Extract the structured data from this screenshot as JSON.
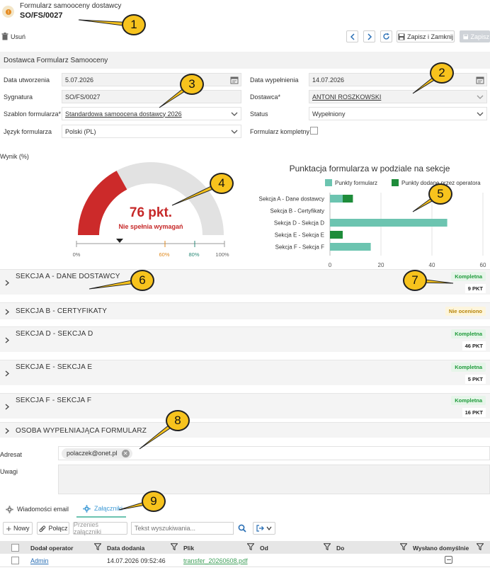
{
  "header": {
    "app_title": "Formularz samooceny dostawcy",
    "doc_number": "SO/FS/0027"
  },
  "toolbar": {
    "delete_label": "Usuń",
    "save_close_label": "Zapisz i Zamknij",
    "save_label": "Zapisz"
  },
  "form": {
    "section_title": "Dostawca Formularz Samooceny",
    "created_date_label": "Data utworzenia",
    "created_date_value": "5.07.2026",
    "signature_label": "Sygnatura",
    "signature_value": "SO/FS/0027",
    "template_label": "Szablon formularza*",
    "template_value": "Standardowa samoocena dostawcy 2026",
    "language_label": "Język formularza",
    "language_value": "Polski (PL)",
    "fill_date_label": "Data wypełnienia",
    "fill_date_value": "14.07.2026",
    "supplier_label": "Dostawca*",
    "supplier_value": "ANTONI ROSZKOWSKI",
    "status_label": "Status",
    "status_value": "Wypełniony",
    "complete_label": "Formularz kompletny"
  },
  "gauge": {
    "title": "Wynik (%)",
    "value": 76,
    "score_text": "76 pkt.",
    "status_text": "Nie spełnia wymagań",
    "ticks": [
      "0%",
      "60%",
      "80%",
      "100%"
    ],
    "colors": {
      "fail": "#cc2a2a",
      "track": "#e2e2e2",
      "tick60": "#e08a1e",
      "tick80": "#2b8a78"
    }
  },
  "chart_data": {
    "type": "bar",
    "orientation": "horizontal",
    "stacked": true,
    "title": "Punktacja formularza w podziale na sekcje",
    "categories": [
      "Sekcja A - Dane dostawcy",
      "Sekcja B - Certyfikaty",
      "Sekcja D - Sekcja D",
      "Sekcja E - Sekcja E",
      "Sekcja F - Sekcja F"
    ],
    "series": [
      {
        "name": "Punkty formularz",
        "color": "#6cc4b0",
        "values": [
          5,
          0,
          46,
          0,
          16
        ]
      },
      {
        "name": "Punkty dodane przez operatora",
        "color": "#1e8c3a",
        "values": [
          4,
          0,
          0,
          5,
          0
        ]
      }
    ],
    "xlim": [
      0,
      60
    ],
    "xticks": [
      "0",
      "20",
      "40",
      "60"
    ],
    "grid": true,
    "legend": "top"
  },
  "sections": [
    {
      "title": "SEKCJA A - DANE DOSTAWCY",
      "status": "Kompletna",
      "points": "9 PKT"
    },
    {
      "title": "SEKCJA B - CERTYFIKATY",
      "status": "Nie oceniono",
      "points": ""
    },
    {
      "title": "SEKCJA D - SEKCJA D",
      "status": "Kompletna",
      "points": "46 PKT"
    },
    {
      "title": "SEKCJA E - SEKCJA E",
      "status": "Kompletna",
      "points": "5 PKT"
    },
    {
      "title": "SEKCJA F - SEKCJA F",
      "status": "Kompletna",
      "points": "16 PKT"
    },
    {
      "title": "OSOBA WYPEŁNIAJĄCA FORMULARZ",
      "status": "",
      "points": ""
    }
  ],
  "person": {
    "addressee_label": "Adresat",
    "addressee_value": "polaczek@onet.pl",
    "notes_label": "Uwagi"
  },
  "tabs": {
    "emails": "Wiadomości email",
    "attachments": "Załączniki"
  },
  "attach_toolbar": {
    "new_label": "Nowy",
    "connect_label": "Połącz",
    "move_label": "Przenieś załączniki",
    "search_placeholder": "Tekst wyszukiwania..."
  },
  "table": {
    "headers": [
      "Dodał operator",
      "Data dodania",
      "Plik",
      "Od",
      "Do",
      "Wysłano domyślnie"
    ],
    "rows": [
      {
        "operator": "Admin",
        "date": "14.07.2026 09:52:46",
        "file": "transfer_20260608.pdf",
        "from": "",
        "to": ""
      }
    ]
  },
  "callouts": [
    "1",
    "2",
    "3",
    "4",
    "5",
    "6",
    "7",
    "8",
    "9"
  ]
}
